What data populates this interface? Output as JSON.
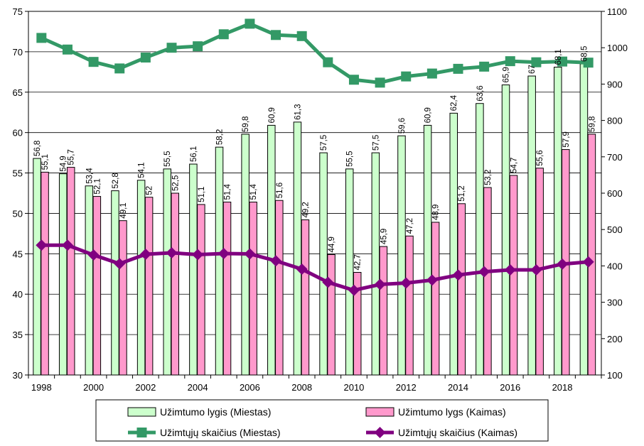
{
  "chart_data": {
    "type": "bar",
    "title": "",
    "xlabel": "",
    "ylabel": "",
    "ylabel_right": "",
    "years": [
      1998,
      1999,
      2000,
      2001,
      2002,
      2003,
      2004,
      2005,
      2006,
      2007,
      2008,
      2009,
      2010,
      2011,
      2012,
      2013,
      2014,
      2015,
      2016,
      2017,
      2018,
      2019
    ],
    "x_tick_labels": [
      "1998",
      "2000",
      "2002",
      "2004",
      "2006",
      "2008",
      "2010",
      "2012",
      "2014",
      "2016",
      "2018"
    ],
    "ylim_left": [
      30,
      75
    ],
    "yticks_left": [
      "30",
      "35",
      "40",
      "45",
      "50",
      "55",
      "60",
      "65",
      "70",
      "75"
    ],
    "ylim_right": [
      100,
      1100
    ],
    "yticks_right": [
      "100",
      "200",
      "300",
      "400",
      "500",
      "600",
      "700",
      "800",
      "900",
      "1000",
      "1100"
    ],
    "grid": "horizontal",
    "legend_position": "bottom",
    "series": [
      {
        "name": "Užimtumo lygis (Miestas)",
        "kind": "bar",
        "axis": "left",
        "color": "#ccffcc",
        "values": [
          56.8,
          54.9,
          53.4,
          52.8,
          54.1,
          55.5,
          56.1,
          58.2,
          59.8,
          60.9,
          61.3,
          57.5,
          55.5,
          57.5,
          59.6,
          60.9,
          62.4,
          63.6,
          65.9,
          67,
          68.1,
          68.5
        ],
        "labels": [
          "56,8",
          "54,9",
          "53,4",
          "52,8",
          "54,1",
          "55,5",
          "56,1",
          "58,2",
          "59,8",
          "60,9",
          "61,3",
          "57,5",
          "55,5",
          "57,5",
          "59,6",
          "60,9",
          "62,4",
          "63,6",
          "65,9",
          "67",
          "68,1",
          "68,5"
        ]
      },
      {
        "name": "Užimtumo lygs (Kaimas)",
        "kind": "bar",
        "axis": "left",
        "color": "#ff99cc",
        "values": [
          55.1,
          55.7,
          52.1,
          49.1,
          52,
          52.5,
          51.1,
          51.4,
          51.4,
          51.6,
          49.2,
          44.9,
          42.7,
          45.9,
          47.2,
          48.9,
          51.2,
          53.2,
          54.7,
          55.6,
          57.9,
          59.8
        ],
        "labels": [
          "55,1",
          "55,7",
          "52,1",
          "49,1",
          "52",
          "52,5",
          "51,1",
          "51,4",
          "51,4",
          "51,6",
          "49,2",
          "44,9",
          "42,7",
          "45,9",
          "47,2",
          "48,9",
          "51,2",
          "53,2",
          "54,7",
          "55,6",
          "57,9",
          "59,8"
        ]
      },
      {
        "name": "Užimtųjų skaičius (Miestas)",
        "kind": "line",
        "axis": "right",
        "color": "#339966",
        "marker": "square",
        "values": [
          1027,
          995,
          961,
          943,
          973,
          1000,
          1004,
          1037,
          1066,
          1035,
          1032,
          960,
          912,
          904,
          921,
          929,
          942,
          948,
          963,
          960,
          962,
          959
        ]
      },
      {
        "name": "Užimtųjų skaičius (Kaimas)",
        "kind": "line",
        "axis": "right",
        "color": "#800080",
        "marker": "diamond",
        "values": [
          457,
          457,
          430,
          406,
          432,
          436,
          431,
          434,
          433,
          414,
          391,
          355,
          333,
          349,
          353,
          361,
          375,
          384,
          389,
          389,
          405,
          411
        ]
      }
    ]
  }
}
